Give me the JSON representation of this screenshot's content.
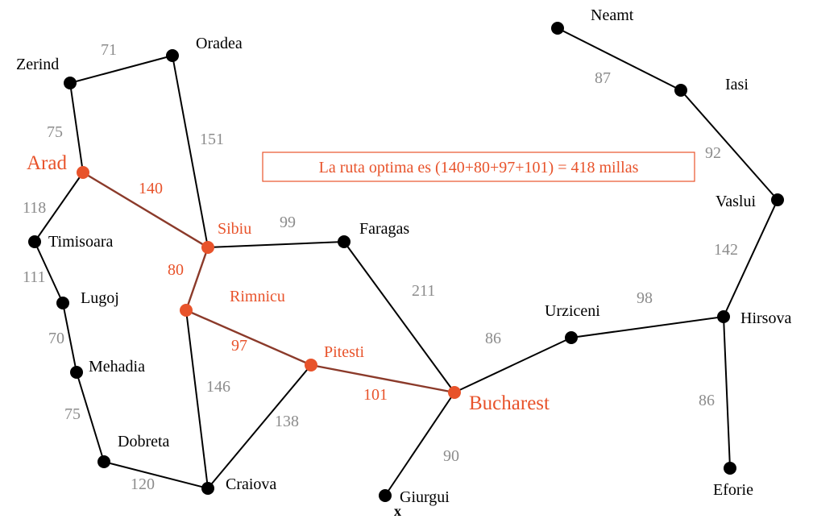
{
  "banner": "La ruta optima es (140+80+97+101) = 418 millas",
  "marker": "x",
  "colors": {
    "highlight": "#e8532b",
    "highlight_edge": "#8b3a2a",
    "distance": "#8c8c8c",
    "default": "#000000"
  },
  "cities": [
    {
      "id": "arad",
      "name": "Arad",
      "highlight": true
    },
    {
      "id": "zerind",
      "name": "Zerind",
      "highlight": false
    },
    {
      "id": "oradea",
      "name": "Oradea",
      "highlight": false
    },
    {
      "id": "sibiu",
      "name": "Sibiu",
      "highlight": true
    },
    {
      "id": "timisoara",
      "name": "Timisoara",
      "highlight": false
    },
    {
      "id": "lugoj",
      "name": "Lugoj",
      "highlight": false
    },
    {
      "id": "mehadia",
      "name": "Mehadia",
      "highlight": false
    },
    {
      "id": "dobreta",
      "name": "Dobreta",
      "highlight": false
    },
    {
      "id": "craiova",
      "name": "Craiova",
      "highlight": false
    },
    {
      "id": "rimnicu",
      "name": "Rimnicu",
      "highlight": true
    },
    {
      "id": "pitesti",
      "name": "Pitesti",
      "highlight": true
    },
    {
      "id": "faragas",
      "name": "Faragas",
      "highlight": false
    },
    {
      "id": "bucharest",
      "name": "Bucharest",
      "highlight": true
    },
    {
      "id": "giurgui",
      "name": "Giurgui",
      "highlight": false
    },
    {
      "id": "urziceni",
      "name": "Urziceni",
      "highlight": false
    },
    {
      "id": "hirsova",
      "name": "Hirsova",
      "highlight": false
    },
    {
      "id": "eforie",
      "name": "Eforie",
      "highlight": false
    },
    {
      "id": "vaslui",
      "name": "Vaslui",
      "highlight": false
    },
    {
      "id": "iasi",
      "name": "Iasi",
      "highlight": false
    },
    {
      "id": "neamt",
      "name": "Neamt",
      "highlight": false
    }
  ],
  "roads": [
    {
      "from": "zerind",
      "to": "oradea",
      "distance": "71",
      "highlight": false
    },
    {
      "from": "zerind",
      "to": "arad",
      "distance": "75",
      "highlight": false
    },
    {
      "from": "oradea",
      "to": "sibiu",
      "distance": "151",
      "highlight": false
    },
    {
      "from": "arad",
      "to": "sibiu",
      "distance": "140",
      "highlight": true
    },
    {
      "from": "arad",
      "to": "timisoara",
      "distance": "118",
      "highlight": false
    },
    {
      "from": "timisoara",
      "to": "lugoj",
      "distance": "111",
      "highlight": false
    },
    {
      "from": "lugoj",
      "to": "mehadia",
      "distance": "70",
      "highlight": false
    },
    {
      "from": "mehadia",
      "to": "dobreta",
      "distance": "75",
      "highlight": false
    },
    {
      "from": "dobreta",
      "to": "craiova",
      "distance": "120",
      "highlight": false
    },
    {
      "from": "sibiu",
      "to": "faragas",
      "distance": "99",
      "highlight": false
    },
    {
      "from": "sibiu",
      "to": "rimnicu",
      "distance": "80",
      "highlight": true
    },
    {
      "from": "rimnicu",
      "to": "craiova",
      "distance": "146",
      "highlight": false
    },
    {
      "from": "rimnicu",
      "to": "pitesti",
      "distance": "97",
      "highlight": true
    },
    {
      "from": "pitesti",
      "to": "craiova",
      "distance": "138",
      "highlight": false
    },
    {
      "from": "pitesti",
      "to": "bucharest",
      "distance": "101",
      "highlight": true
    },
    {
      "from": "faragas",
      "to": "bucharest",
      "distance": "211",
      "highlight": false
    },
    {
      "from": "bucharest",
      "to": "giurgui",
      "distance": "90",
      "highlight": false
    },
    {
      "from": "bucharest",
      "to": "urziceni",
      "distance": "86",
      "highlight": false
    },
    {
      "from": "urziceni",
      "to": "hirsova",
      "distance": "98",
      "highlight": false
    },
    {
      "from": "hirsova",
      "to": "eforie",
      "distance": "86",
      "highlight": false
    },
    {
      "from": "hirsova",
      "to": "vaslui",
      "distance": "142",
      "highlight": false
    },
    {
      "from": "vaslui",
      "to": "iasi",
      "distance": "92",
      "highlight": false
    },
    {
      "from": "iasi",
      "to": "neamt",
      "distance": "87",
      "highlight": false
    }
  ]
}
